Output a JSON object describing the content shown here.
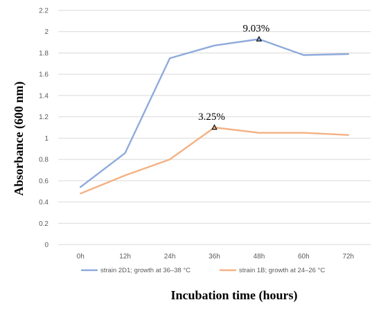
{
  "chart_data": {
    "type": "line",
    "xlabel": "Incubation time (hours)",
    "ylabel": "Absorbance (600 nm)",
    "categories": [
      "0h",
      "12h",
      "24h",
      "36h",
      "48h",
      "60h",
      "72h"
    ],
    "ylim": [
      0,
      2.2
    ],
    "yticks": [
      "0",
      "0.2",
      "0.4",
      "0.6",
      "0.8",
      "1",
      "1.2",
      "1.4",
      "1.6",
      "1.8",
      "2",
      "2.2"
    ],
    "grid": true,
    "legend_position": "bottom",
    "series": [
      {
        "name": "strain 2D1; growth at 36–38 °C",
        "color": "#8eaadb",
        "values": [
          0.54,
          0.86,
          1.75,
          1.87,
          1.93,
          1.78,
          1.79
        ],
        "marker_index": 4,
        "annotation": "9.03%"
      },
      {
        "name": "strain 1B; growth at 24–26 °C",
        "color": "#f4b183",
        "values": [
          0.48,
          0.65,
          0.8,
          1.1,
          1.05,
          1.05,
          1.03
        ],
        "marker_index": 3,
        "annotation": "3.25%"
      }
    ]
  }
}
